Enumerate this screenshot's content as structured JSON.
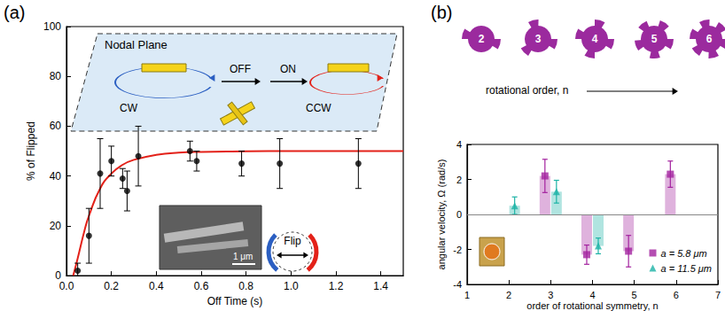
{
  "chart_data": [
    {
      "type": "scatter",
      "title": "(a)",
      "x_label": "Off Time (s)",
      "y_label": "% of Flipped",
      "annotations": [
        "Nodal Plane",
        "CW",
        "OFF",
        "ON",
        "CCW",
        "Flip",
        "1 μm"
      ],
      "xlim": [
        0,
        1.5
      ],
      "xticks": [
        {
          "value": 0,
          "label": "0.0"
        },
        0.2,
        0.4,
        0.6,
        0.8,
        {
          "value": 1,
          "label": "1.0"
        },
        1.2,
        1.4
      ],
      "ylim": [
        0,
        100
      ],
      "yticks": [
        0,
        20,
        40,
        60,
        80,
        100
      ],
      "grid": false,
      "series": [
        {
          "type": "scatter",
          "color": "#000000",
          "marker": "circle",
          "x": [
            0.05,
            0.1,
            0.15,
            0.2,
            0.25,
            0.27,
            0.32,
            0.55,
            0.58,
            0.78,
            0.95,
            1.3
          ],
          "values": [
            2,
            16,
            41,
            46,
            39,
            34,
            48,
            50,
            46,
            45,
            45,
            45
          ],
          "errors": [
            3,
            11,
            14,
            6,
            4,
            8,
            12,
            4,
            4,
            5,
            10,
            10
          ]
        },
        {
          "type": "line",
          "color": "#e32119",
          "line_style": "solid",
          "x": [
            0.03,
            0.05,
            0.08,
            0.1,
            0.15,
            0.2,
            0.25,
            0.3,
            0.4,
            0.5,
            0.6,
            0.8,
            1.0,
            1.2,
            1.5
          ],
          "values": [
            0,
            7,
            18,
            24,
            35,
            41,
            44.5,
            46.5,
            48.5,
            49.4,
            49.7,
            49.9,
            50,
            50,
            50
          ]
        }
      ]
    },
    {
      "type": "bar",
      "title": "(b)",
      "x_label": "order of rotational symmetry, n",
      "y_label": "angular velocity, Ω (rad/s)",
      "annotations": [
        "rotational order, n"
      ],
      "icon_labels": [
        2,
        3,
        4,
        5,
        6
      ],
      "x": [
        2,
        3,
        4,
        5,
        6
      ],
      "xlim": [
        1,
        7
      ],
      "xticks": [
        1,
        2,
        3,
        4,
        5,
        6,
        7
      ],
      "ylim": [
        -4,
        4
      ],
      "yticks": [
        -4,
        -2,
        0,
        2,
        4
      ],
      "grid": false,
      "legend": "lower right",
      "series": [
        {
          "name": "a = 5.8 μm",
          "color": "#a3229f",
          "marker": "square",
          "values": [
            null,
            2.2,
            -2.3,
            -2.1,
            2.3
          ],
          "errors": [
            null,
            0.95,
            0.55,
            0.9,
            0.75
          ]
        },
        {
          "name": "a = 11.5 μm",
          "color": "#1db3a6",
          "marker": "triangle",
          "values": [
            0.5,
            1.3,
            -1.8,
            null,
            null
          ],
          "errors": [
            0.5,
            0.65,
            0.45,
            null,
            null
          ]
        }
      ]
    }
  ]
}
